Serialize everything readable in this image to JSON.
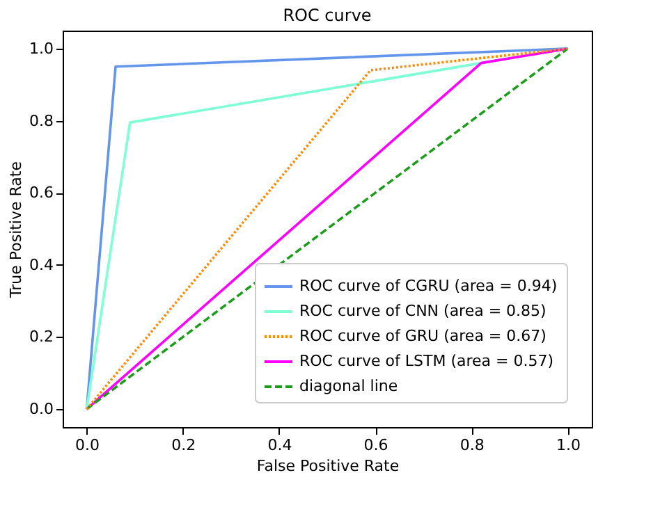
{
  "chart_data": {
    "type": "line",
    "title": "ROC curve",
    "xlabel": "False Positive Rate",
    "ylabel": "True Positive Rate",
    "xlim": [
      -0.05,
      1.05
    ],
    "ylim": [
      -0.05,
      1.05
    ],
    "xticks": [
      {
        "value": 0,
        "label": "0.0"
      },
      0.2,
      0.4,
      0.6,
      0.8,
      {
        "value": 1,
        "label": "1.0"
      }
    ],
    "yticks": [
      {
        "value": 0,
        "label": "0.0"
      },
      0.2,
      0.4,
      0.6,
      0.8,
      {
        "value": 1,
        "label": "1.0"
      }
    ],
    "grid": false,
    "legend": "bottom right",
    "marker": "none",
    "series": [
      {
        "name": "ROC curve of CGRU (area = 0.94)",
        "color": "#6495ed",
        "line_style": "solid",
        "x": [
          0,
          0.06,
          1
        ],
        "values": [
          0,
          0.95,
          1
        ]
      },
      {
        "name": "ROC curve of CNN (area = 0.85)",
        "color": "#7fffd4",
        "line_style": "solid",
        "x": [
          0,
          0.09,
          0.82,
          1
        ],
        "values": [
          0,
          0.795,
          0.96,
          1
        ]
      },
      {
        "name": "ROC curve of GRU (area = 0.67)",
        "color": "#ff8c00",
        "line_style": "dotted",
        "x": [
          0,
          0.59,
          1
        ],
        "values": [
          0,
          0.94,
          1
        ]
      },
      {
        "name": "ROC curve of LSTM (area = 0.57)",
        "color": "#ff00ff",
        "line_style": "solid",
        "x": [
          0,
          0.82,
          1
        ],
        "values": [
          0,
          0.96,
          1
        ]
      },
      {
        "name": "diagonal line",
        "color": "#1a9e1a",
        "line_style": "dashed",
        "x": [
          0,
          1
        ],
        "values": [
          0,
          1
        ]
      }
    ]
  }
}
